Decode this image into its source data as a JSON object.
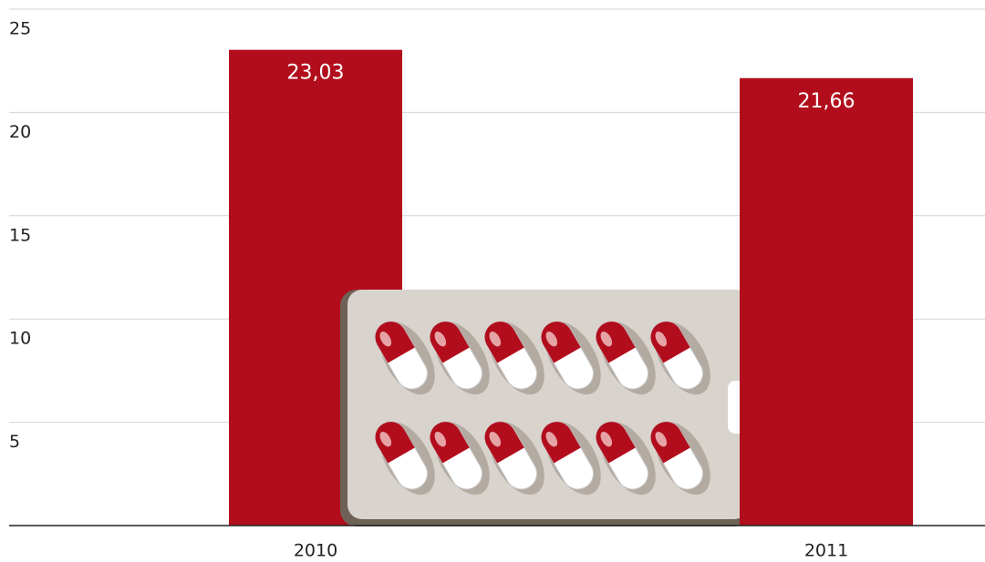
{
  "chart_data": {
    "type": "bar",
    "categories": [
      "2010",
      "2011"
    ],
    "values": [
      23.03,
      21.66
    ],
    "value_labels": [
      "23,03",
      "21,66"
    ],
    "color": "#b20d1c",
    "ylim": [
      0,
      25
    ],
    "yticks": [
      5,
      10,
      15,
      20,
      25
    ],
    "grid": true
  }
}
